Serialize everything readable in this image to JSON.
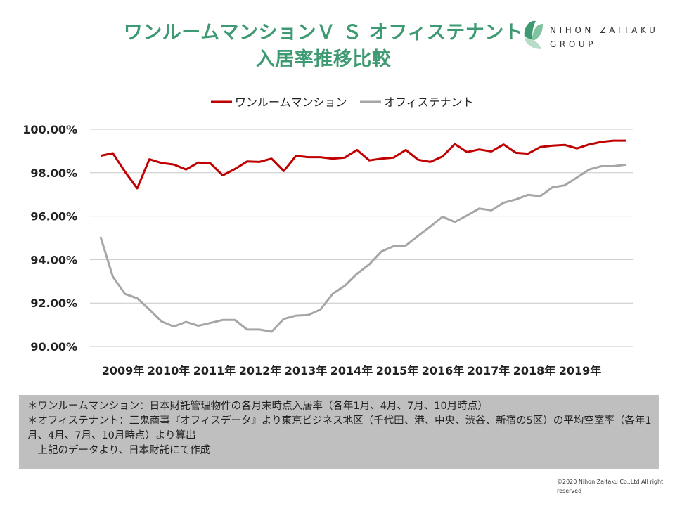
{
  "header": {
    "title_line1": "ワンルームマンションＶ Ｓ オフィステナント",
    "title_line2": "入居率推移比較"
  },
  "logo": {
    "line1": "NIHON ZAITAKU",
    "line2": "GROUP",
    "colors": [
      "#3e9a72",
      "#7fc3a0",
      "#b9dcc8"
    ]
  },
  "chart_data": {
    "type": "line",
    "ylim": [
      90,
      100
    ],
    "yticks": [
      "100.00%",
      "98.00%",
      "96.00%",
      "94.00%",
      "92.00%",
      "90.00%"
    ],
    "ytick_values": [
      100,
      98,
      96,
      94,
      92,
      90
    ],
    "xtick_labels": [
      "2009年",
      "2010年",
      "2011年",
      "2012年",
      "2013年",
      "2014年",
      "2015年",
      "2016年",
      "2017年",
      "2018年",
      "2019年"
    ],
    "grid": true,
    "legend_position": "top",
    "series": [
      {
        "name": "ワンルームマンション",
        "color": "#c00000",
        "values": [
          98.78,
          98.9,
          98.05,
          97.28,
          98.62,
          98.45,
          98.38,
          98.15,
          98.47,
          98.43,
          97.88,
          98.17,
          98.52,
          98.5,
          98.65,
          98.08,
          98.78,
          98.72,
          98.72,
          98.65,
          98.7,
          99.05,
          98.57,
          98.65,
          98.7,
          99.05,
          98.6,
          98.5,
          98.75,
          99.32,
          98.95,
          99.07,
          98.98,
          99.3,
          98.92,
          98.88,
          99.18,
          99.25,
          99.28,
          99.12,
          99.3,
          99.42,
          99.48,
          99.48
        ]
      },
      {
        "name": "オフィステナント",
        "color": "#a6a6a6",
        "values": [
          95.05,
          93.22,
          92.42,
          92.22,
          91.7,
          91.15,
          90.92,
          91.13,
          90.95,
          91.08,
          91.22,
          91.22,
          90.78,
          90.78,
          90.68,
          91.27,
          91.42,
          91.45,
          91.7,
          92.42,
          92.8,
          93.35,
          93.78,
          94.38,
          94.62,
          94.65,
          95.1,
          95.52,
          95.97,
          95.73,
          96.03,
          96.35,
          96.27,
          96.62,
          96.77,
          96.98,
          96.92,
          97.33,
          97.42,
          97.78,
          98.15,
          98.3,
          98.3,
          98.37
        ]
      }
    ]
  },
  "notes": {
    "line1": "＊ワンルームマンション：日本財託管理物件の各月末時点入居率（各年1月、4月、7月、10月時点）",
    "line2": "＊オフィステナント：三鬼商事『オフィスデータ』より東京ビジネス地区（千代田、港、中央、渋谷、新宿の5区）の平均空室率（各年1月、4月、7月、10月時点）より算出",
    "line3": "　上記のデータより、日本財託にて作成"
  },
  "copyright": "©2020 Nihon Zaitaku Co.,Ltd All right reserved"
}
